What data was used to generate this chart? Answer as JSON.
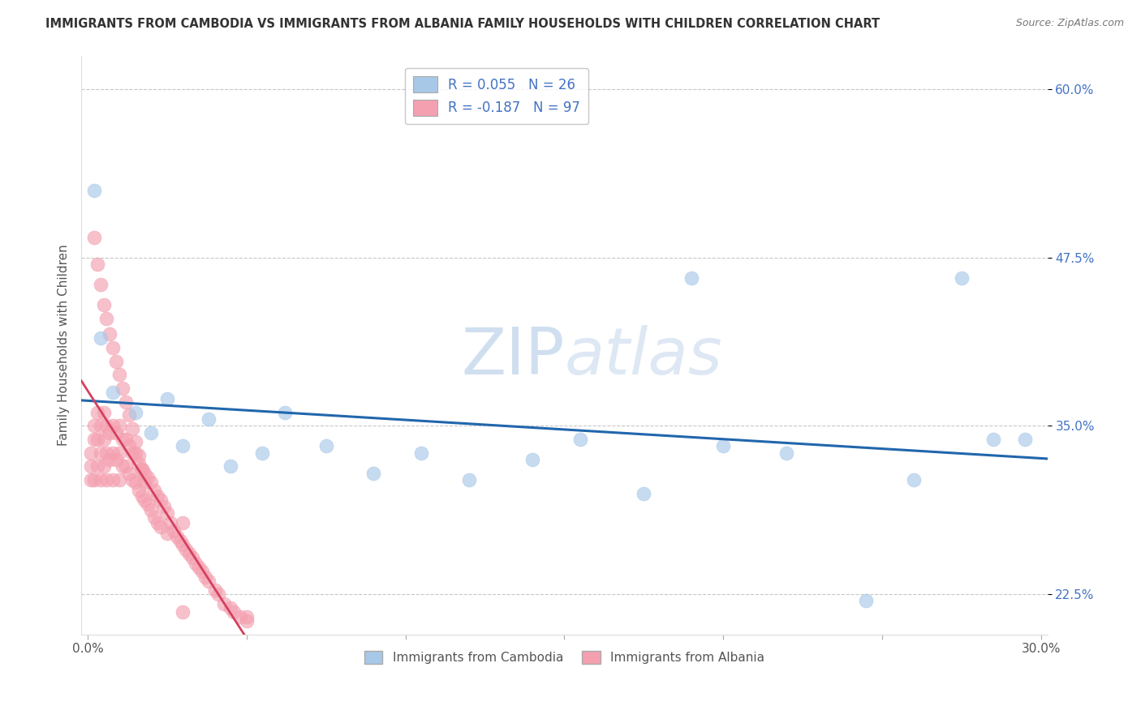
{
  "title": "IMMIGRANTS FROM CAMBODIA VS IMMIGRANTS FROM ALBANIA FAMILY HOUSEHOLDS WITH CHILDREN CORRELATION CHART",
  "source": "Source: ZipAtlas.com",
  "ylabel": "Family Households with Children",
  "legend_label_1": "Immigrants from Cambodia",
  "legend_label_2": "Immigrants from Albania",
  "R1": 0.055,
  "N1": 26,
  "R2": -0.187,
  "N2": 97,
  "xlim": [
    -0.002,
    0.302
  ],
  "ylim": [
    0.195,
    0.625
  ],
  "xticks": [
    0.0,
    0.05,
    0.1,
    0.15,
    0.2,
    0.25,
    0.3
  ],
  "ytick_pos": [
    0.225,
    0.35,
    0.475,
    0.6
  ],
  "ytick_labels": [
    "22.5%",
    "35.0%",
    "47.5%",
    "60.0%"
  ],
  "xtick_labels": [
    "0.0%",
    "",
    "",
    "",
    "",
    "",
    "30.0%"
  ],
  "color_cambodia": "#a8c8e8",
  "color_albania": "#f4a0b0",
  "trend_color_cambodia": "#2166ac",
  "trend_color_albania": "#d44060",
  "background_color": "#ffffff",
  "grid_color": "#c8c8c8",
  "watermark_color": "#d0dff0",
  "scatter_cambodia_x": [
    0.002,
    0.004,
    0.008,
    0.015,
    0.02,
    0.025,
    0.03,
    0.038,
    0.045,
    0.055,
    0.062,
    0.075,
    0.09,
    0.105,
    0.12,
    0.14,
    0.155,
    0.175,
    0.19,
    0.2,
    0.22,
    0.245,
    0.26,
    0.275,
    0.285,
    0.295
  ],
  "scatter_cambodia_y": [
    0.525,
    0.415,
    0.375,
    0.36,
    0.345,
    0.37,
    0.335,
    0.355,
    0.32,
    0.33,
    0.36,
    0.335,
    0.315,
    0.33,
    0.31,
    0.325,
    0.34,
    0.3,
    0.46,
    0.335,
    0.33,
    0.22,
    0.31,
    0.46,
    0.34,
    0.34
  ],
  "scatter_albania_x": [
    0.001,
    0.001,
    0.001,
    0.002,
    0.002,
    0.002,
    0.003,
    0.003,
    0.003,
    0.004,
    0.004,
    0.004,
    0.005,
    0.005,
    0.005,
    0.006,
    0.006,
    0.006,
    0.007,
    0.007,
    0.008,
    0.008,
    0.008,
    0.009,
    0.009,
    0.01,
    0.01,
    0.01,
    0.011,
    0.011,
    0.012,
    0.012,
    0.013,
    0.013,
    0.014,
    0.014,
    0.015,
    0.015,
    0.016,
    0.016,
    0.017,
    0.017,
    0.018,
    0.018,
    0.019,
    0.019,
    0.02,
    0.02,
    0.021,
    0.021,
    0.022,
    0.022,
    0.023,
    0.023,
    0.024,
    0.025,
    0.025,
    0.026,
    0.027,
    0.028,
    0.029,
    0.03,
    0.03,
    0.031,
    0.032,
    0.033,
    0.034,
    0.035,
    0.036,
    0.037,
    0.038,
    0.04,
    0.041,
    0.043,
    0.045,
    0.046,
    0.048,
    0.05,
    0.002,
    0.003,
    0.004,
    0.005,
    0.006,
    0.007,
    0.008,
    0.009,
    0.01,
    0.011,
    0.012,
    0.013,
    0.014,
    0.015,
    0.016,
    0.017,
    0.018,
    0.03,
    0.05
  ],
  "scatter_albania_y": [
    0.33,
    0.32,
    0.31,
    0.35,
    0.34,
    0.31,
    0.36,
    0.34,
    0.32,
    0.35,
    0.33,
    0.31,
    0.36,
    0.34,
    0.32,
    0.35,
    0.33,
    0.31,
    0.345,
    0.325,
    0.35,
    0.33,
    0.31,
    0.345,
    0.325,
    0.35,
    0.33,
    0.31,
    0.34,
    0.32,
    0.34,
    0.32,
    0.335,
    0.315,
    0.33,
    0.31,
    0.33,
    0.308,
    0.322,
    0.302,
    0.318,
    0.298,
    0.315,
    0.295,
    0.312,
    0.292,
    0.308,
    0.288,
    0.302,
    0.282,
    0.298,
    0.278,
    0.295,
    0.275,
    0.29,
    0.285,
    0.27,
    0.278,
    0.272,
    0.268,
    0.265,
    0.262,
    0.278,
    0.258,
    0.255,
    0.252,
    0.248,
    0.245,
    0.242,
    0.238,
    0.235,
    0.228,
    0.225,
    0.218,
    0.215,
    0.212,
    0.208,
    0.205,
    0.49,
    0.47,
    0.455,
    0.44,
    0.43,
    0.418,
    0.408,
    0.398,
    0.388,
    0.378,
    0.368,
    0.358,
    0.348,
    0.338,
    0.328,
    0.318,
    0.308,
    0.212,
    0.208
  ]
}
